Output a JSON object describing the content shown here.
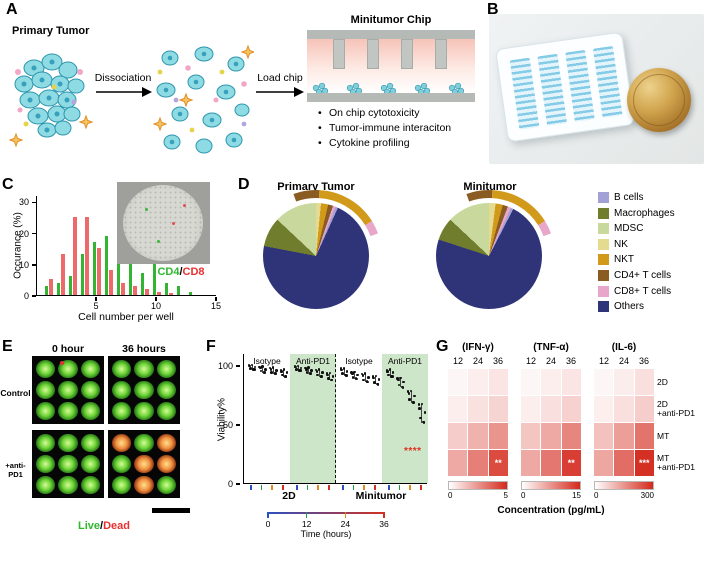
{
  "accent": {
    "heat_max": "#d4291c",
    "live_green": "#2eb82e",
    "dead_red": "#e83030"
  },
  "panelA": {
    "label": "A",
    "primary_tumor": "Primary Tumor",
    "dissociation": "Dissociation",
    "load_chip": "Load chip",
    "chip_title": "Minitumor Chip",
    "bullets": [
      "On chip cytotoxicity",
      "Tumor-immune interaciton",
      "Cytokine profiling"
    ]
  },
  "panelB": {
    "label": "B"
  },
  "panelC": {
    "label": "C",
    "ylabel": "Occurance (%)",
    "xlabel": "Cell number per well",
    "yticks": [
      0,
      10,
      20,
      30
    ],
    "xticks": [
      5,
      10,
      15
    ],
    "legend": {
      "cd4": "CD4",
      "slash": "/",
      "cd8": "CD8"
    },
    "chart_data": {
      "type": "bar",
      "xlabel": "Cell number per well",
      "ylabel": "Occurance (%)",
      "xlim": [
        0,
        15
      ],
      "ylim": [
        0,
        32
      ],
      "series": [
        {
          "name": "CD4",
          "color": "#33b433",
          "x": [
            1,
            2,
            3,
            4,
            5,
            6,
            7,
            8,
            9,
            10,
            11,
            12,
            13
          ],
          "values": [
            3,
            4,
            6,
            13,
            17,
            19,
            15,
            10,
            7,
            12,
            4,
            3,
            1
          ]
        },
        {
          "name": "CD8",
          "color": "#ee6a6a",
          "x": [
            1,
            2,
            3,
            4,
            5,
            6,
            7,
            8,
            9,
            10,
            11,
            12,
            13
          ],
          "values": [
            5,
            13,
            25,
            25,
            15,
            8,
            4,
            3,
            2,
            1,
            0.5,
            0,
            0
          ]
        }
      ]
    }
  },
  "panelD": {
    "label": "D",
    "pie_titles": [
      "Primary Tumor",
      "Minitumor"
    ],
    "legend_items": [
      {
        "label": "B cells",
        "color": "#a3a0d6"
      },
      {
        "label": "Macrophages",
        "color": "#6f7d2c"
      },
      {
        "label": "MDSC",
        "color": "#c9d89c"
      },
      {
        "label": "NK",
        "color": "#e4da90"
      },
      {
        "label": "NKT",
        "color": "#d19a1a"
      },
      {
        "label": "CD4+ T cells",
        "color": "#8a5c22"
      },
      {
        "label": "CD8+ T cells",
        "color": "#e7a6ca"
      },
      {
        "label": "Others",
        "color": "#2f3478"
      }
    ],
    "chart_data": [
      {
        "type": "pie",
        "title": "Primary Tumor",
        "slices": [
          {
            "label": "NK",
            "value": 1.5
          },
          {
            "label": "NKT",
            "value": 2.2
          },
          {
            "label": "CD4+ T cells",
            "value": 1.5
          },
          {
            "label": "CD8+ T cells",
            "value": 0.8
          },
          {
            "label": "B cells",
            "value": 0.8
          },
          {
            "label": "Others",
            "value": 71.2
          },
          {
            "label": "Macrophages",
            "value": 9.0
          },
          {
            "label": "MDSC",
            "value": 13.0
          }
        ]
      },
      {
        "type": "pie",
        "title": "Minitumor",
        "slices": [
          {
            "label": "NK",
            "value": 2.0
          },
          {
            "label": "NKT",
            "value": 2.2
          },
          {
            "label": "CD4+ T cells",
            "value": 1.6
          },
          {
            "label": "CD8+ T cells",
            "value": 1.0
          },
          {
            "label": "B cells",
            "value": 0.8
          },
          {
            "label": "Others",
            "value": 72.4
          },
          {
            "label": "Macrophages",
            "value": 7.0
          },
          {
            "label": "MDSC",
            "value": 13.0
          }
        ]
      }
    ]
  },
  "panelE": {
    "label": "E",
    "col_headers": [
      "0 hour",
      "36 hours"
    ],
    "row_labels": [
      "Control",
      "+anti-PD1"
    ],
    "legend": {
      "live": "Live",
      "slash": "/",
      "dead": "Dead"
    }
  },
  "panelF": {
    "label": "F",
    "ylabel": "Viability%",
    "yticks": [
      0,
      50,
      100
    ],
    "group_headers": [
      "Isotype",
      "Anti-PD1",
      "Isotype",
      "Anti-PD1"
    ],
    "condition_labels": [
      "2D",
      "Minitumor"
    ],
    "time_ticks": [
      "0",
      "12",
      "24",
      "36"
    ],
    "time_label": "Time (hours)",
    "significance": "****",
    "chart_data": {
      "type": "scatter",
      "ylabel": "Viability%",
      "ylim": [
        0,
        110
      ],
      "time_hours": [
        0,
        12,
        24,
        36
      ],
      "groups": [
        {
          "name": "2D Isotype",
          "means": [
            98,
            96,
            95,
            93
          ],
          "spreads": [
            2,
            2.5,
            2.5,
            3
          ]
        },
        {
          "name": "2D Anti-PD1",
          "means": [
            97,
            95,
            93,
            90
          ],
          "spreads": [
            2,
            2.5,
            3,
            3
          ]
        },
        {
          "name": "Minitumor Isotype",
          "means": [
            94,
            91,
            89,
            87
          ],
          "spreads": [
            3,
            3,
            3.5,
            3.5
          ]
        },
        {
          "name": "Minitumor Anti-PD1",
          "means": [
            93,
            85,
            73,
            59
          ],
          "spreads": [
            3,
            4,
            5,
            8
          ]
        }
      ]
    }
  },
  "panelG": {
    "label": "G",
    "row_labels": [
      "2D",
      "2D\n+anti-PD1",
      "MT",
      "MT\n+anti-PD1"
    ],
    "xlabel": "Concentration (pg/mL)",
    "chart_data": [
      {
        "type": "heatmap",
        "title": "(IFN-γ)",
        "cols": [
          "12",
          "24",
          "36"
        ],
        "scale": {
          "min": "0",
          "max": "5"
        },
        "vmax": 5,
        "rows": [
          [
            0.2,
            0.4,
            0.6
          ],
          [
            0.4,
            0.7,
            1.0
          ],
          [
            1.2,
            1.8,
            2.5
          ],
          [
            2.0,
            3.0,
            4.2
          ]
        ],
        "sig": "**"
      },
      {
        "type": "heatmap",
        "title": "(TNF-α)",
        "cols": [
          "12",
          "24",
          "36"
        ],
        "scale": {
          "min": "0",
          "max": "15"
        },
        "vmax": 15,
        "rows": [
          [
            0.6,
            1.2,
            1.8
          ],
          [
            1.2,
            2.2,
            3.2
          ],
          [
            4.0,
            6.0,
            8.5
          ],
          [
            6.0,
            9.5,
            13.5
          ]
        ],
        "sig": "**"
      },
      {
        "type": "heatmap",
        "title": "(IL-6)",
        "cols": [
          "12",
          "24",
          "36"
        ],
        "scale": {
          "min": "0",
          "max": "300"
        },
        "vmax": 300,
        "rows": [
          [
            12,
            25,
            45
          ],
          [
            22,
            45,
            70
          ],
          [
            85,
            135,
            195
          ],
          [
            125,
            205,
            290
          ]
        ],
        "sig": "***"
      }
    ]
  }
}
